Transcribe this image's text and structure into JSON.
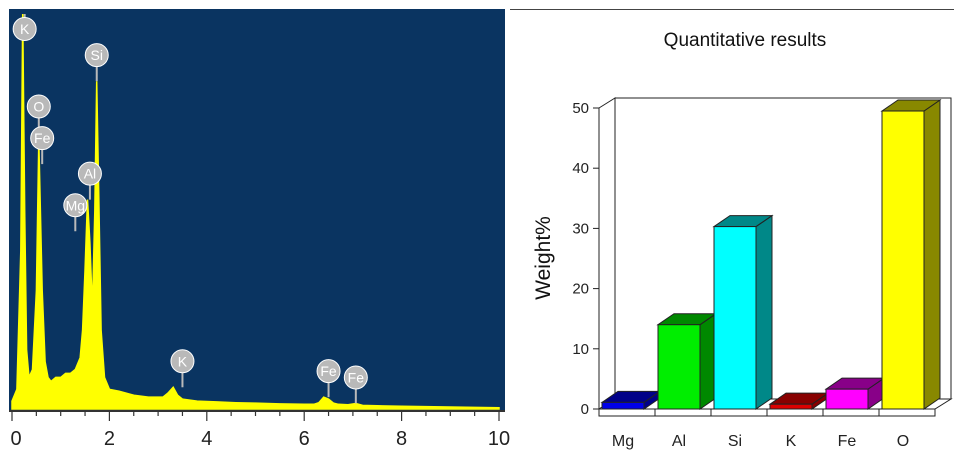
{
  "chart_data": [
    {
      "type": "line",
      "panel": "eds-spectrum",
      "xlim": [
        0,
        10
      ],
      "x_ticks": [
        "0",
        "2",
        "4",
        "6",
        "8",
        "10"
      ],
      "grid": false,
      "background": "#0a3461",
      "line_color": "#ffff00",
      "series": [
        {
          "x": [
            0.0,
            0.1,
            0.18,
            0.22,
            0.26,
            0.3,
            0.35,
            0.42,
            0.5,
            0.55,
            0.62,
            0.68,
            0.74,
            0.8,
            0.9,
            1.0,
            1.1,
            1.2,
            1.3,
            1.4,
            1.45,
            1.5,
            1.55,
            1.6,
            1.65,
            1.7,
            1.74,
            1.78,
            1.83,
            1.9,
            2.0,
            2.2,
            2.5,
            2.8,
            3.1,
            3.2,
            3.31,
            3.4,
            3.5,
            3.8,
            4.2,
            4.6,
            5.0,
            5.5,
            6.0,
            6.2,
            6.3,
            6.4,
            6.5,
            6.6,
            6.7,
            6.9,
            7.06,
            7.2,
            7.5,
            8.0,
            8.5,
            9.0,
            9.5,
            10.0
          ],
          "y": [
            0.02,
            0.05,
            0.4,
            1.0,
            0.5,
            0.15,
            0.08,
            0.1,
            0.3,
            0.68,
            0.3,
            0.12,
            0.08,
            0.07,
            0.08,
            0.08,
            0.09,
            0.09,
            0.1,
            0.13,
            0.2,
            0.35,
            0.53,
            0.42,
            0.25,
            0.5,
            0.83,
            0.55,
            0.2,
            0.08,
            0.05,
            0.045,
            0.035,
            0.03,
            0.03,
            0.04,
            0.055,
            0.035,
            0.025,
            0.02,
            0.018,
            0.016,
            0.015,
            0.013,
            0.012,
            0.012,
            0.016,
            0.03,
            0.025,
            0.015,
            0.012,
            0.011,
            0.014,
            0.009,
            0.008,
            0.007,
            0.006,
            0.005,
            0.004,
            0.003
          ]
        }
      ],
      "annotations": [
        {
          "label": "K",
          "x": 0.26,
          "y": 1.0
        },
        {
          "label": "Si",
          "x": 1.74,
          "y": 0.83
        },
        {
          "label": "O",
          "x": 0.55,
          "y": 0.7
        },
        {
          "label": "Fe",
          "x": 0.62,
          "y": 0.62
        },
        {
          "label": "Al",
          "x": 1.6,
          "y": 0.53
        },
        {
          "label": "Mg",
          "x": 1.3,
          "y": 0.45
        },
        {
          "label": "K",
          "x": 3.5,
          "y": 0.055
        },
        {
          "label": "Fe",
          "x": 6.5,
          "y": 0.03
        },
        {
          "label": "Fe",
          "x": 7.06,
          "y": 0.014
        }
      ],
      "annotation_color": "#b9b9b9"
    },
    {
      "type": "bar",
      "panel": "quantitative-results",
      "title": "Quantitative results",
      "ylabel": "Weight%",
      "ylim": [
        0,
        50
      ],
      "y_ticks": [
        "0",
        "10",
        "20",
        "30",
        "40",
        "50"
      ],
      "categories": [
        "Mg",
        "Al",
        "Si",
        "K",
        "Fe",
        "O"
      ],
      "values": [
        1.1,
        14,
        30.3,
        0.8,
        3.3,
        49.5
      ],
      "colors": [
        "#0000e8",
        "#00ee00",
        "#00ffff",
        "#dd0000",
        "#ff00ff",
        "#ffff00"
      ],
      "side_colors": [
        "#000088",
        "#008800",
        "#008888",
        "#880000",
        "#880088",
        "#888800"
      ],
      "grid": false
    }
  ]
}
